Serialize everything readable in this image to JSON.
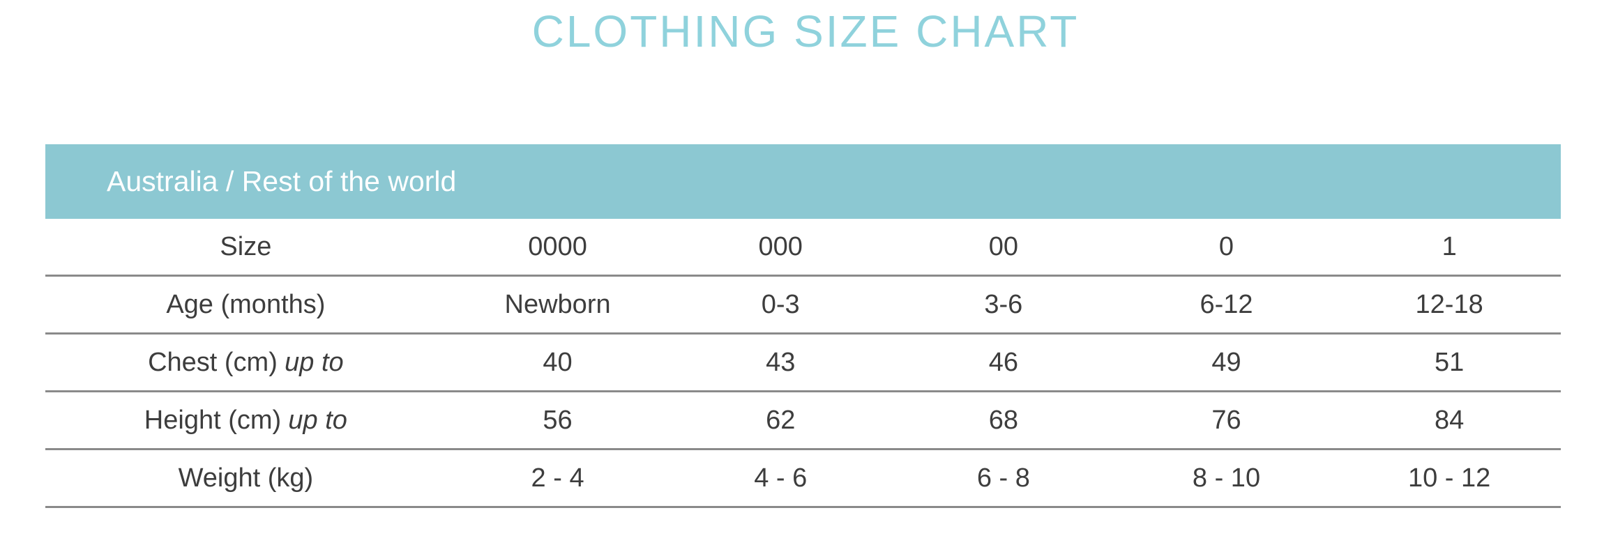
{
  "title": "CLOTHING SIZE CHART",
  "colors": {
    "title_text": "#8fd2dc",
    "band_background": "#8cc8d2",
    "band_text": "#ffffff",
    "body_text": "#3d3d3d",
    "row_divider": "#8a8a8a"
  },
  "chart_data": {
    "type": "table",
    "title": "CLOTHING SIZE CHART",
    "region_header": "Australia / Rest of the world",
    "columns": [
      "Size",
      "0000",
      "000",
      "00",
      "0",
      "1"
    ],
    "rows": [
      {
        "label": "Size",
        "label_italic": "",
        "values": [
          "0000",
          "000",
          "00",
          "0",
          "1"
        ]
      },
      {
        "label": "Age (months)",
        "label_italic": "",
        "values": [
          "Newborn",
          "0-3",
          "3-6",
          "6-12",
          "12-18"
        ]
      },
      {
        "label": "Chest (cm)",
        "label_italic": "up to",
        "values": [
          "40",
          "43",
          "46",
          "49",
          "51"
        ]
      },
      {
        "label": "Height (cm)",
        "label_italic": "up to",
        "values": [
          "56",
          "62",
          "68",
          "76",
          "84"
        ]
      },
      {
        "label": "Weight (kg)",
        "label_italic": "",
        "values": [
          "2 - 4",
          "4 - 6",
          "6 - 8",
          "8 - 10",
          "10 - 12"
        ]
      }
    ]
  }
}
